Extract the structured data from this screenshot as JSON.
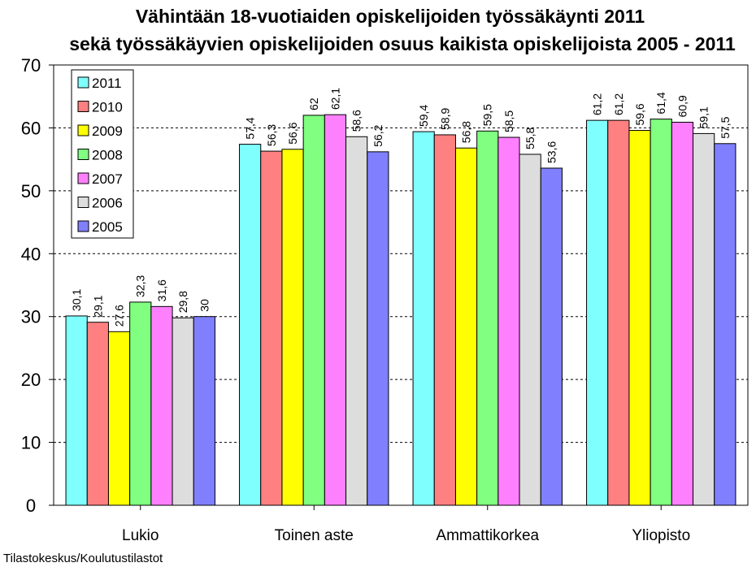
{
  "chart_data": {
    "type": "bar",
    "title_lines": [
      "Vähintään 18-vuotiaiden opiskelijoiden työssäkäynti 2011",
      "sekä työssäkäyvien opiskelijoiden osuus kaikista opiskelijoista 2005 - 2011"
    ],
    "categories": [
      "Lukio",
      "Toinen aste",
      "Ammattikorkea",
      "Yliopisto"
    ],
    "series": [
      {
        "name": "2011",
        "color": "#80ffff",
        "values": [
          30.1,
          57.4,
          59.4,
          61.2
        ],
        "labels": [
          "30,1",
          "57,4",
          "59,4",
          "61,2"
        ]
      },
      {
        "name": "2010",
        "color": "#ff8080",
        "values": [
          29.1,
          56.3,
          58.9,
          61.2
        ],
        "labels": [
          "29,1",
          "56,3",
          "58,9",
          "61,2"
        ]
      },
      {
        "name": "2009",
        "color": "#ffff00",
        "values": [
          27.6,
          56.6,
          56.8,
          59.6
        ],
        "labels": [
          "27,6",
          "56,6",
          "56,8",
          "59,6"
        ]
      },
      {
        "name": "2008",
        "color": "#80ff80",
        "values": [
          32.3,
          62,
          59.5,
          61.4
        ],
        "labels": [
          "32,3",
          "62",
          "59,5",
          "61,4"
        ]
      },
      {
        "name": "2007",
        "color": "#ff80ff",
        "values": [
          31.6,
          62.1,
          58.5,
          60.9
        ],
        "labels": [
          "31,6",
          "62,1",
          "58,5",
          "60,9"
        ]
      },
      {
        "name": "2006",
        "color": "#dddddd",
        "values": [
          29.8,
          58.6,
          55.8,
          59.1
        ],
        "labels": [
          "29,8",
          "58,6",
          "55,8",
          "59,1"
        ]
      },
      {
        "name": "2005",
        "color": "#8080ff",
        "values": [
          30,
          56.2,
          53.6,
          57.5
        ],
        "labels": [
          "30",
          "56,2",
          "53,6",
          "57,5"
        ]
      }
    ],
    "ylim": [
      0,
      70
    ],
    "yticks": [
      "0",
      "10",
      "20",
      "30",
      "40",
      "50",
      "60",
      "70"
    ],
    "grid": "horizontal dashed",
    "legend": "top-left",
    "source": "Tilastokeskus/Koulutustilastot"
  }
}
